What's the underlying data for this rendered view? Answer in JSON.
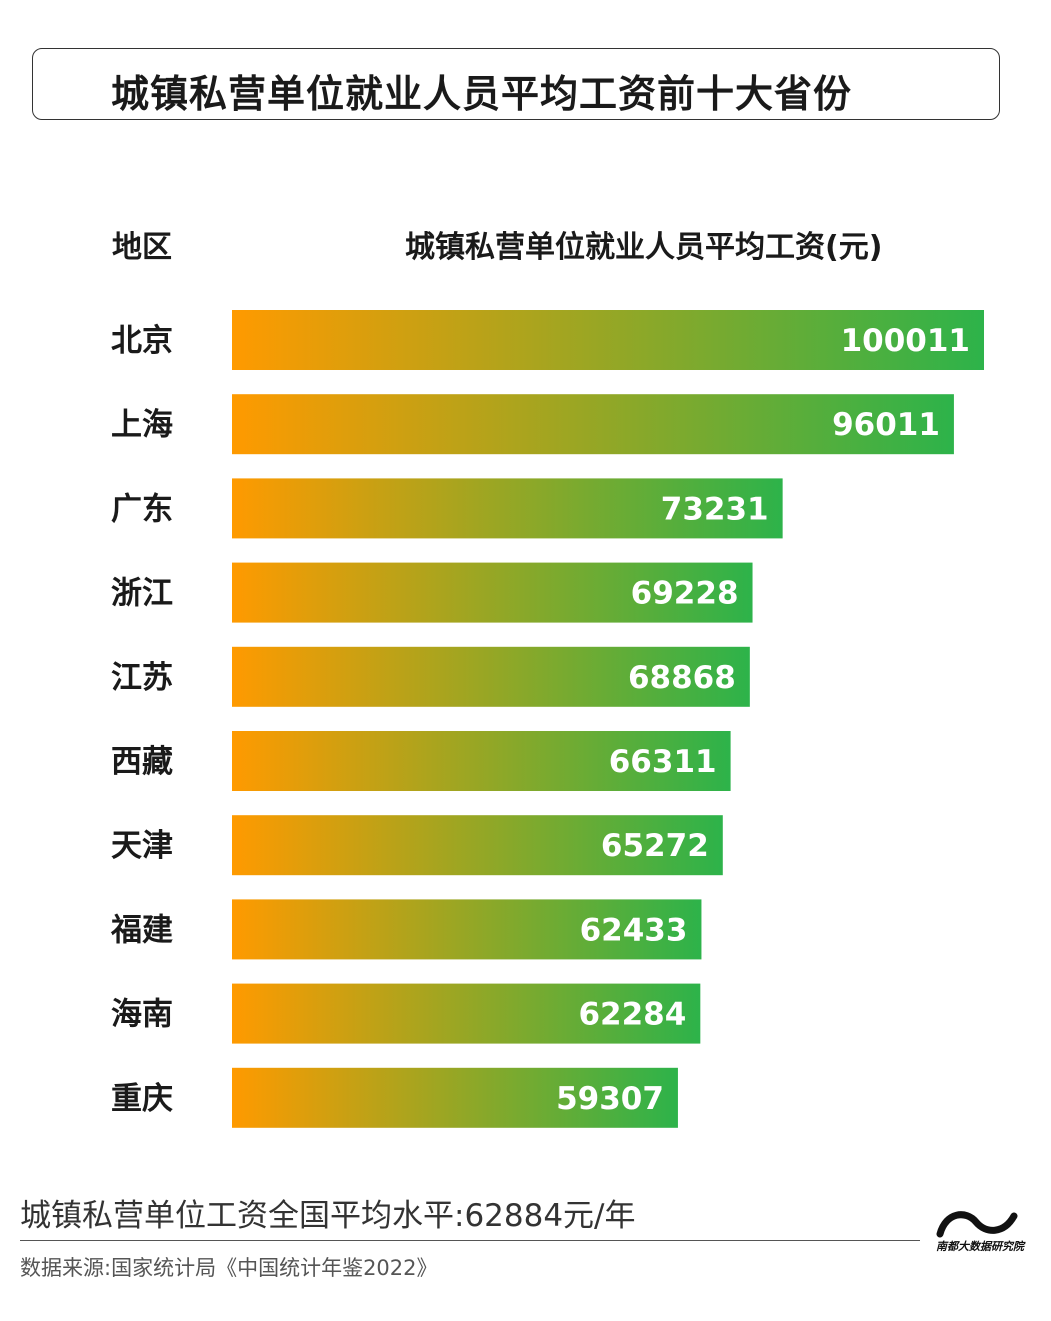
{
  "title": "城镇私营单位就业人员平均工资前十大省份",
  "header": {
    "region_label": "地区",
    "value_label": "城镇私营单位就业人员平均工资(元)"
  },
  "colors": {
    "bar_start": "#ff9a00",
    "bar_end": "#2db34a",
    "value_text": "#ffffff"
  },
  "chart_data": {
    "type": "bar",
    "orientation": "horizontal",
    "categories": [
      "北京",
      "上海",
      "广东",
      "浙江",
      "江苏",
      "西藏",
      "天津",
      "福建",
      "海南",
      "重庆"
    ],
    "values": [
      100011,
      96011,
      73231,
      69228,
      68868,
      66311,
      65272,
      62433,
      62284,
      59307
    ],
    "xlabel": "城镇私营单位就业人员平均工资(元)",
    "ylabel": "地区",
    "grid": false
  },
  "footer": {
    "average": "城镇私营单位工资全国平均水平:62884元/年",
    "source": "数据来源:国家统计局《中国统计年鉴2022》",
    "logo_text": "南都大数据研究院"
  }
}
